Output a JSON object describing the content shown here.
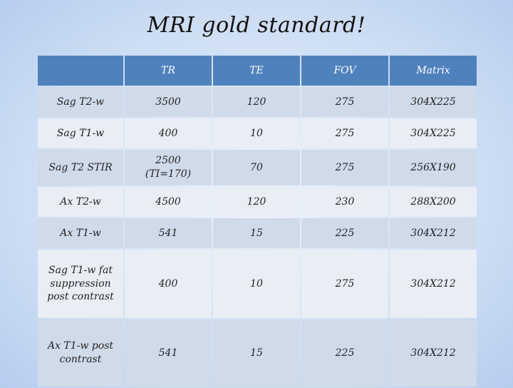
{
  "title": "MRI gold standard!",
  "table": {
    "headers": [
      "",
      "TR",
      "TE",
      "FOV",
      "Matrix"
    ],
    "rows": [
      [
        "Sag T2-w",
        "3500",
        "120",
        "275",
        "304X225"
      ],
      [
        "Sag T1-w",
        "400",
        "10",
        "275",
        "304X225"
      ],
      [
        "Sag T2 STIR",
        "2500\n(TI=170)",
        "70",
        "275",
        "256X190"
      ],
      [
        "Ax T2-w",
        "4500",
        "120",
        "230",
        "288X200"
      ],
      [
        "Ax T1-w",
        "541",
        "15",
        "225",
        "304X212"
      ],
      [
        "Sag T1-w fat suppression post contrast",
        "400",
        "10",
        "275",
        "304X212"
      ],
      [
        "Ax T1-w post contrast",
        "541",
        "15",
        "225",
        "304X212"
      ]
    ]
  }
}
